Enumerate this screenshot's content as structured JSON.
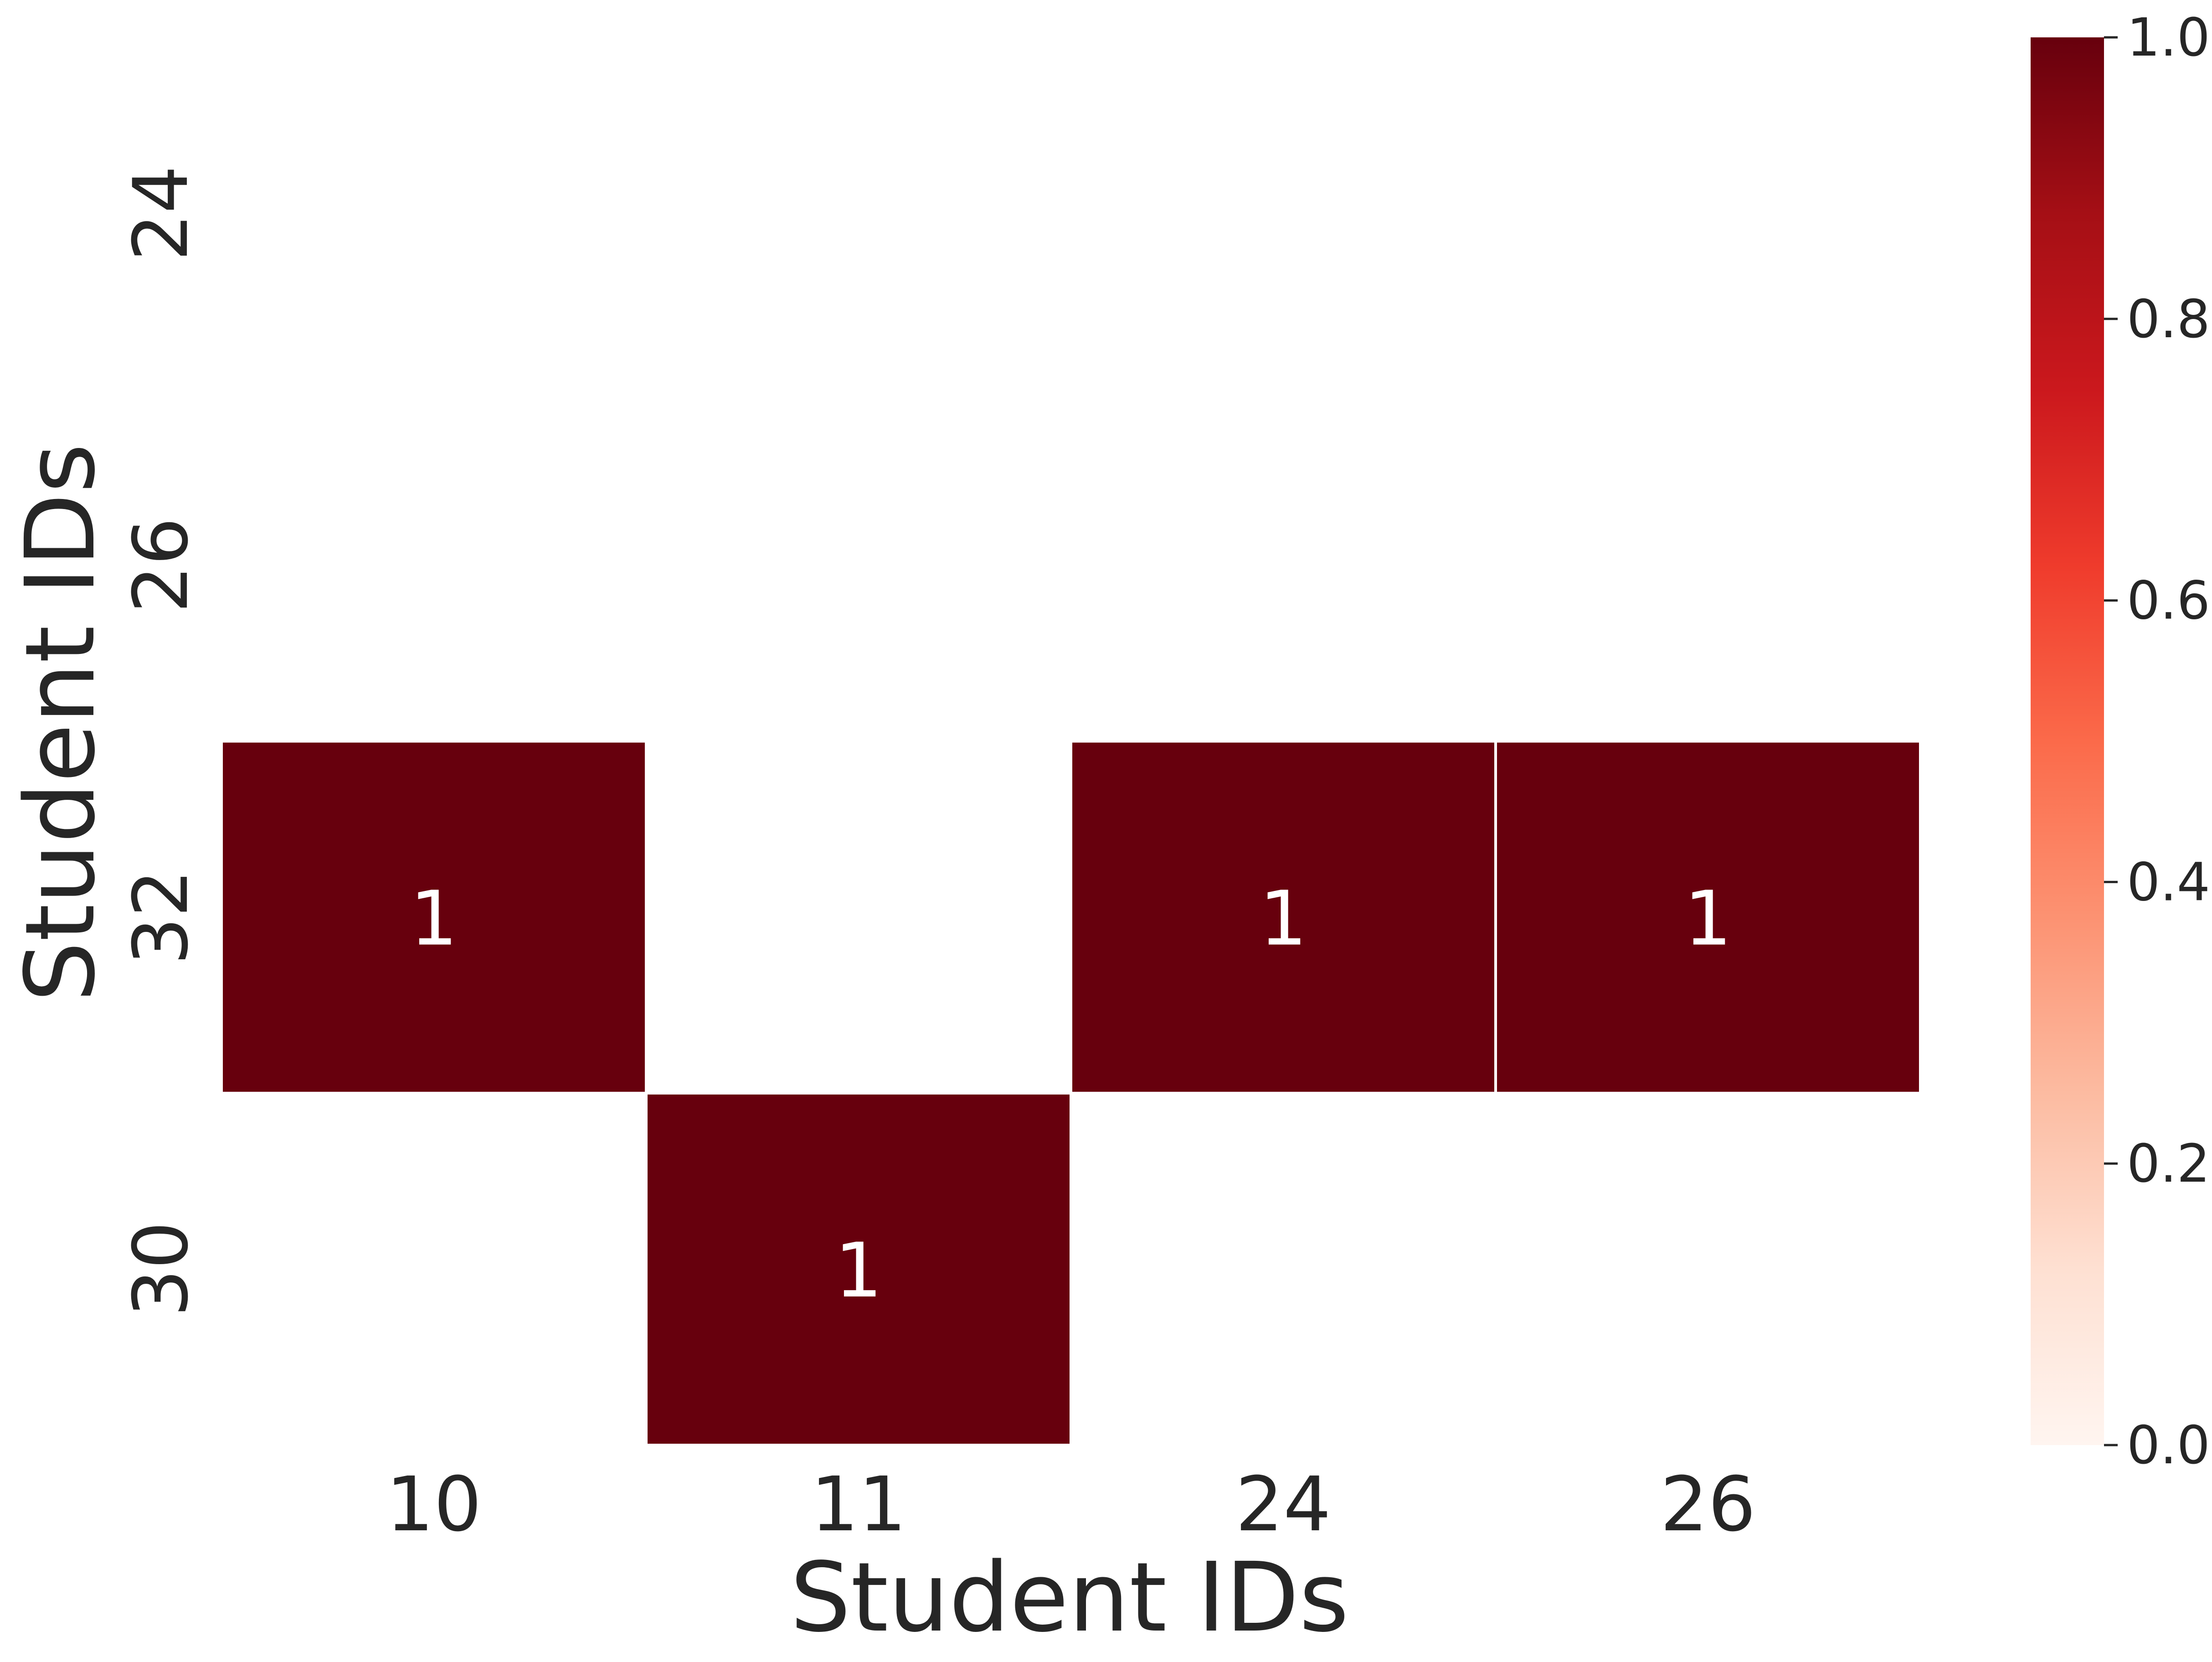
{
  "chart_data": {
    "type": "heatmap",
    "title": "",
    "xlabel": "Student IDs",
    "ylabel": "Student IDs",
    "x_categories": [
      "10",
      "11",
      "24",
      "26"
    ],
    "y_categories": [
      "24",
      "26",
      "32",
      "30"
    ],
    "values": [
      [
        0,
        0,
        0,
        0
      ],
      [
        0,
        0,
        0,
        0
      ],
      [
        1,
        0,
        1,
        1
      ],
      [
        0,
        1,
        0,
        0
      ]
    ],
    "annotations": [
      {
        "row": 2,
        "col": 0,
        "label": "1"
      },
      {
        "row": 2,
        "col": 2,
        "label": "1"
      },
      {
        "row": 2,
        "col": 3,
        "label": "1"
      },
      {
        "row": 3,
        "col": 1,
        "label": "1"
      }
    ],
    "colorscale": "Reds",
    "colorbar": {
      "range": [
        0.0,
        1.0
      ],
      "ticks": [
        "0.0",
        "0.2",
        "0.4",
        "0.6",
        "0.8",
        "1.0"
      ]
    },
    "colors": {
      "high": "#67000d",
      "low": "#fff5f0",
      "cell_border": "#ffffff",
      "annotation_text": "#ffffff",
      "text": "#262626"
    },
    "grid": false
  }
}
